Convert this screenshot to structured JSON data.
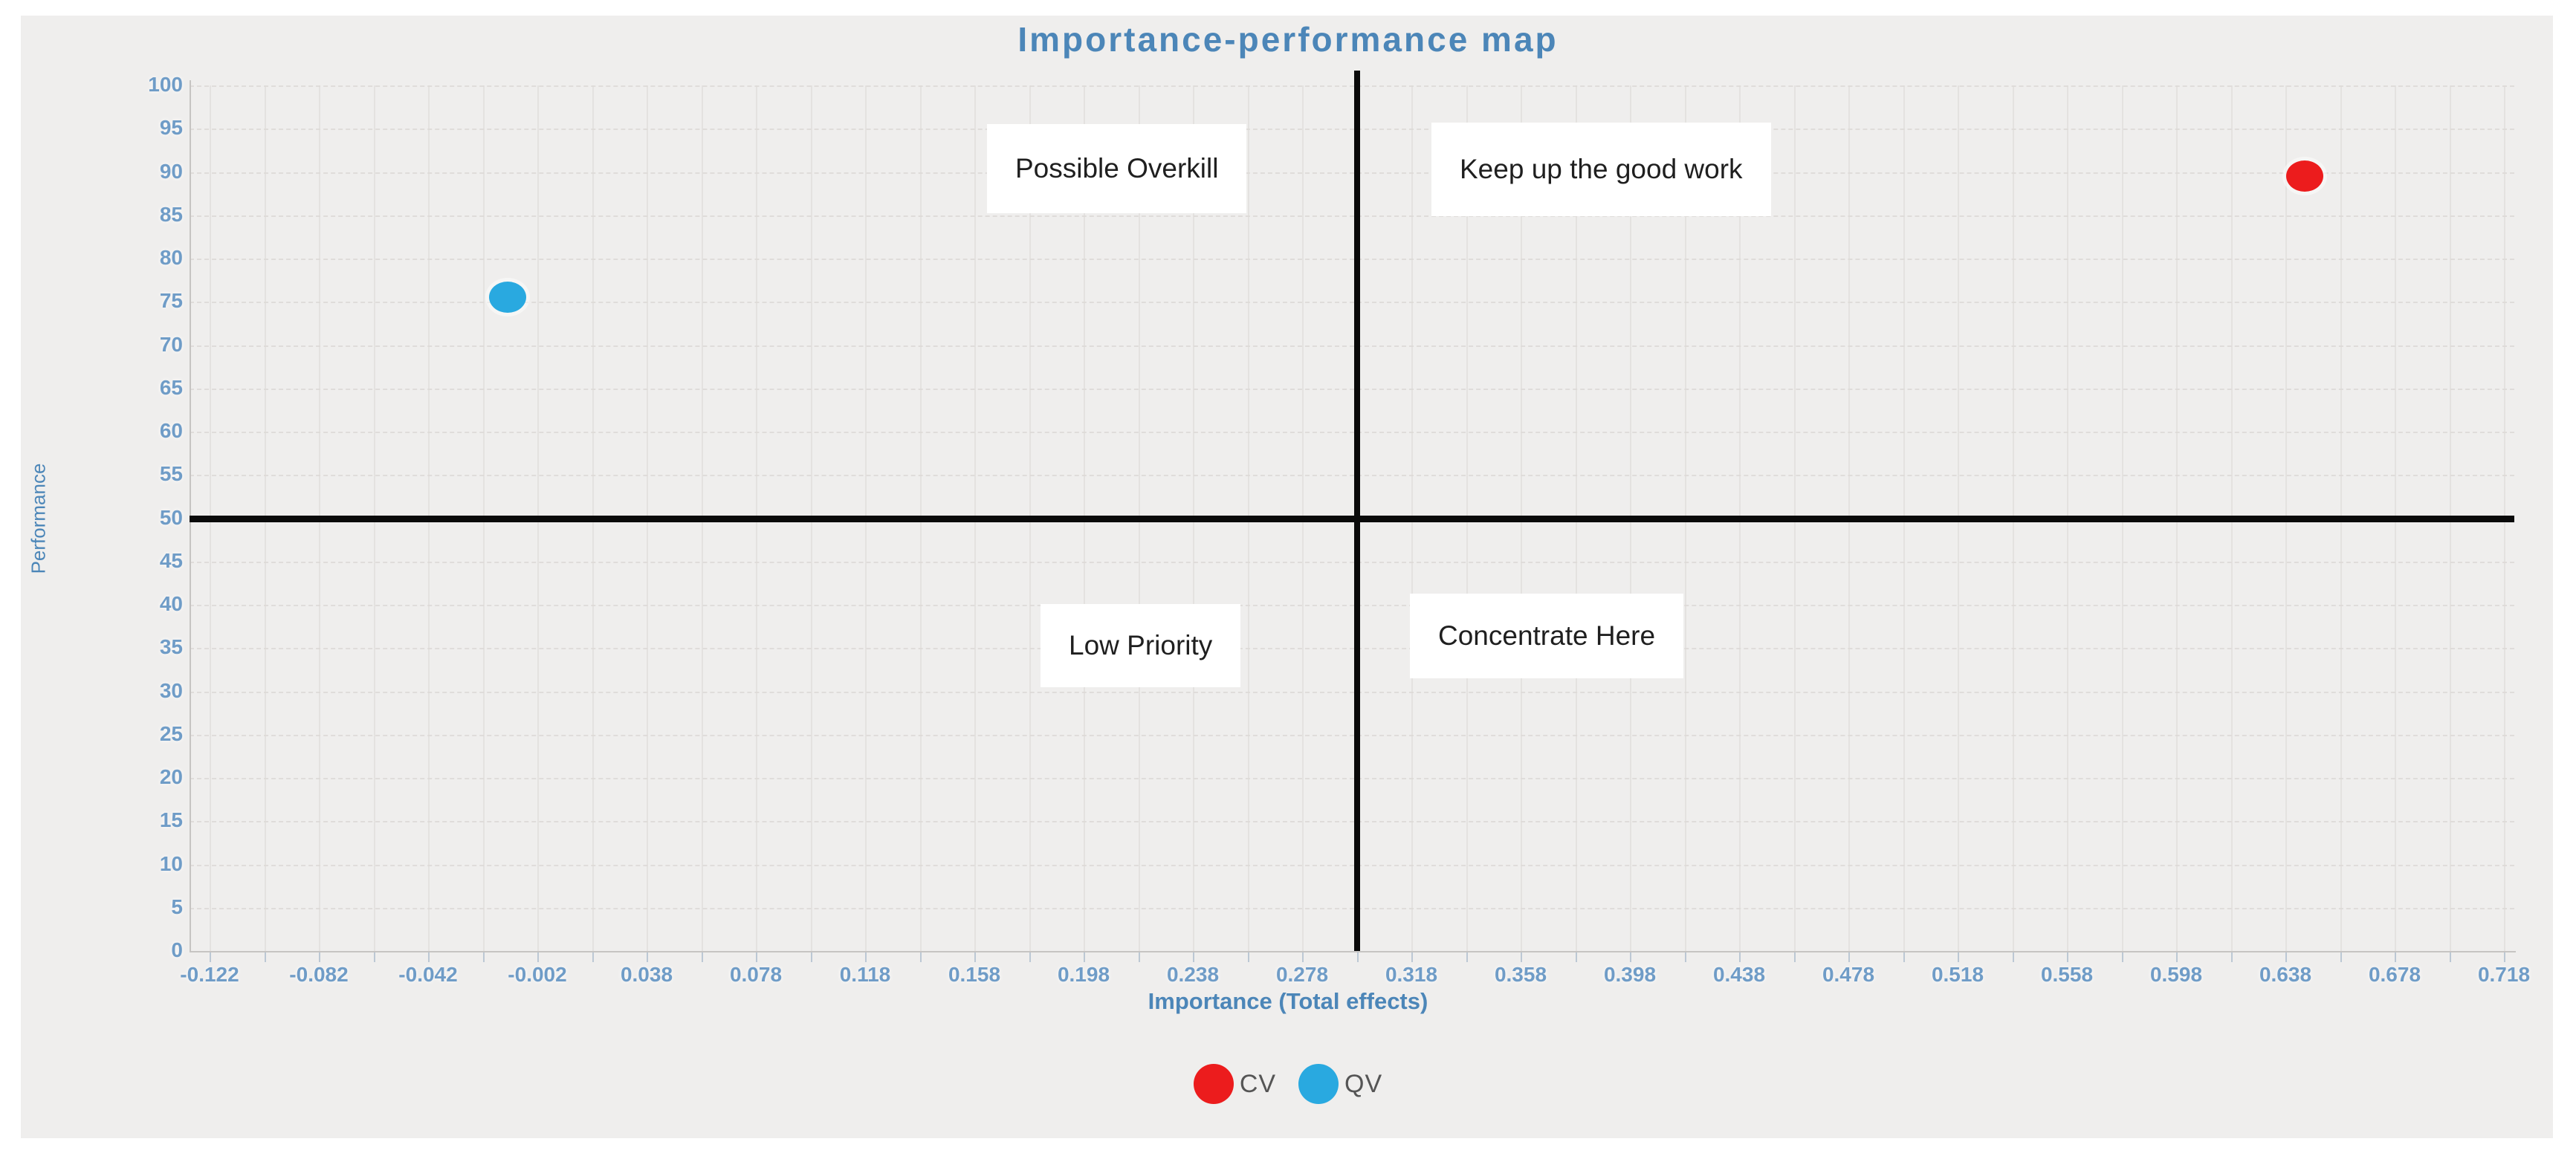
{
  "title": "Importance-performance map",
  "axes": {
    "x_label": "Importance (Total effects)",
    "y_label": "Performance"
  },
  "quadrants": {
    "top_left": "Possible Overkill",
    "top_right": "Keep up the good work",
    "bottom_left": "Low Priority",
    "bottom_right": "Concentrate Here"
  },
  "legend": [
    {
      "label": "CV",
      "color": "#ec1c1d"
    },
    {
      "label": "QV",
      "color": "#29a9e0"
    }
  ],
  "colors": {
    "title_accent": "#4c86b8",
    "tick_labels": "#6f9cc7",
    "cv_series": "#ec1c1d",
    "qv_series": "#29a9e0",
    "reference_lines": "#0a0a0a",
    "panel_background": "#efeeed"
  },
  "chart_data": {
    "type": "scatter",
    "title": "Importance-performance map",
    "xlabel": "Importance (Total effects)",
    "ylabel": "Performance",
    "xlim": [
      -0.13,
      0.722
    ],
    "ylim": [
      0,
      100
    ],
    "grid": "on",
    "legend_position": "bottom-center",
    "x_ticks": [
      -0.122,
      -0.082,
      -0.042,
      -0.002,
      0.038,
      0.078,
      0.118,
      0.158,
      0.198,
      0.238,
      0.278,
      0.318,
      0.358,
      0.398,
      0.438,
      0.478,
      0.518,
      0.558,
      0.598,
      0.638,
      0.678,
      0.718
    ],
    "y_ticks": [
      0,
      5,
      10,
      15,
      20,
      25,
      30,
      35,
      40,
      45,
      50,
      55,
      60,
      65,
      70,
      75,
      80,
      85,
      90,
      95,
      100
    ],
    "series": [
      {
        "name": "CV",
        "color": "#ec1c1d",
        "points": [
          {
            "x": 0.645,
            "y": 89.5
          }
        ]
      },
      {
        "name": "QV",
        "color": "#29a9e0",
        "points": [
          {
            "x": -0.013,
            "y": 75.5
          }
        ]
      }
    ],
    "reference_lines": {
      "x": 0.298,
      "y": 50
    },
    "quadrant_labels": [
      "Possible Overkill",
      "Keep up the good work",
      "Low Priority",
      "Concentrate Here"
    ]
  }
}
